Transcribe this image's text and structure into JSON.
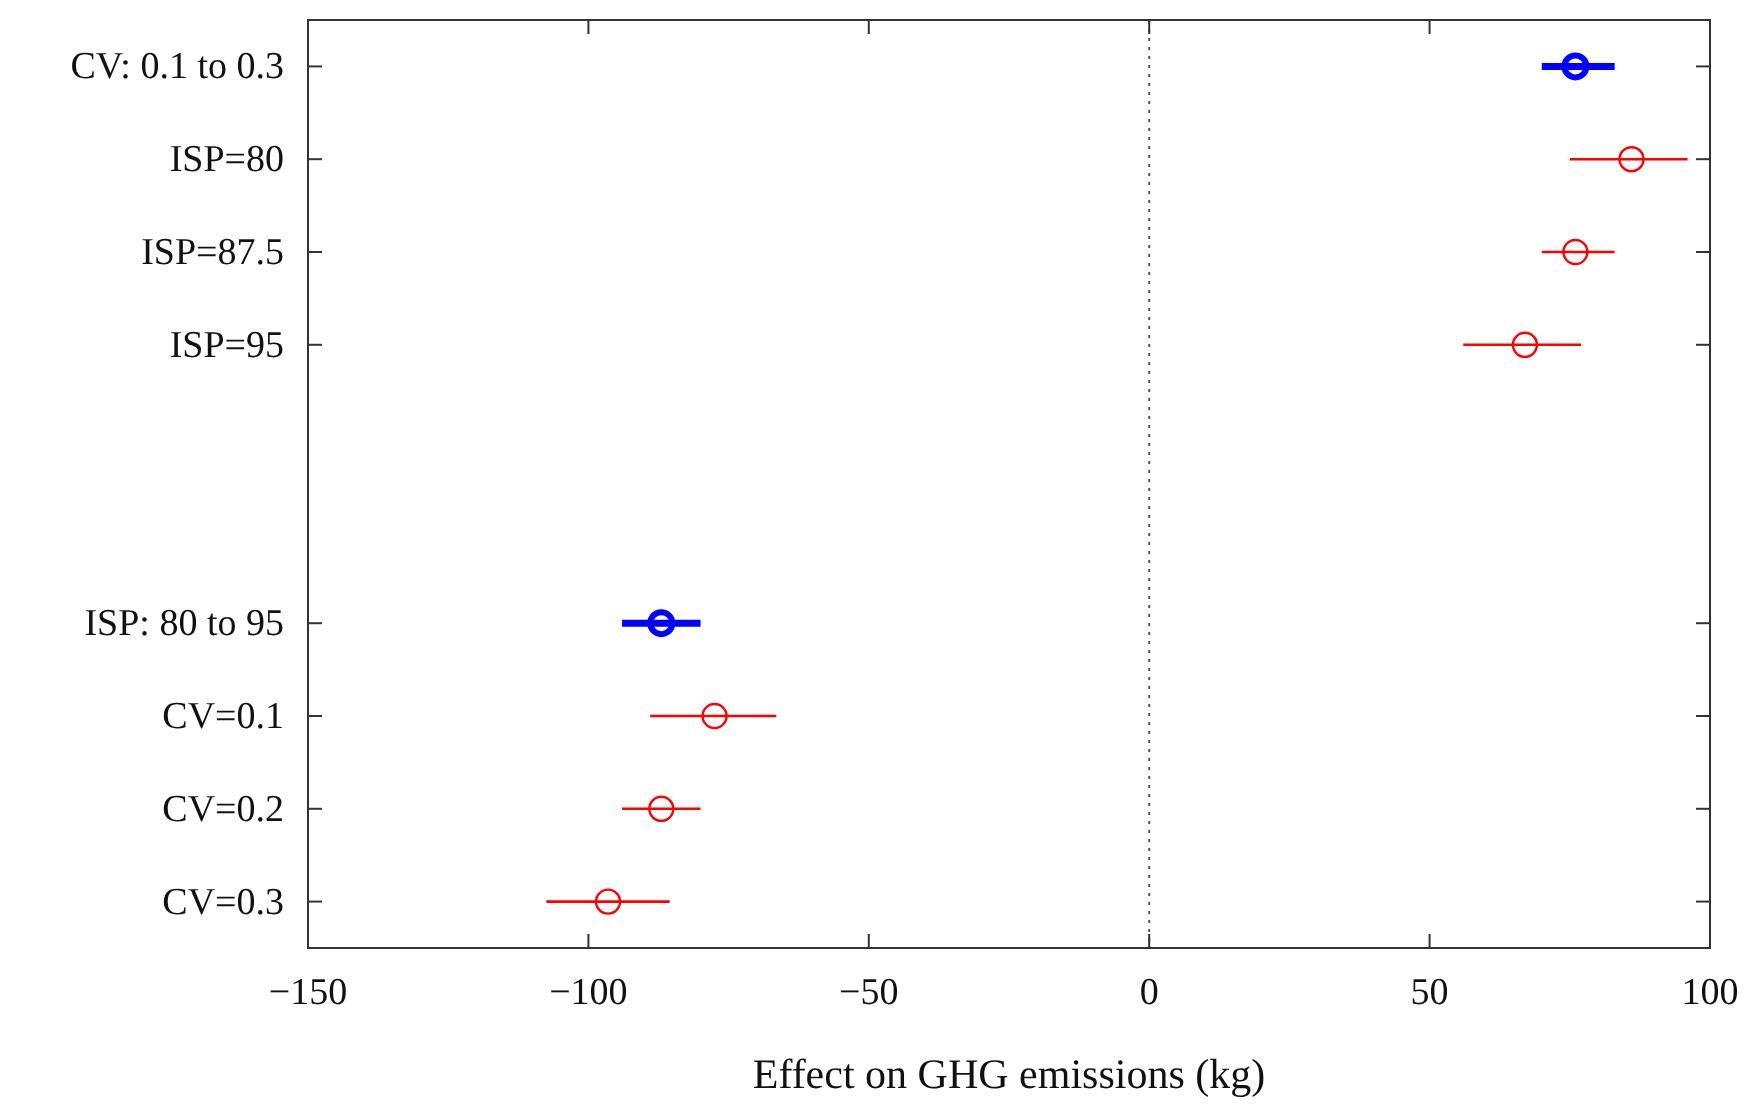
{
  "chart_data": {
    "type": "scatter",
    "orientation": "horizontal",
    "categories": [
      "CV: 0.1 to 0.3",
      "ISP=80",
      "ISP=87.5",
      "ISP=95",
      null,
      null,
      "ISP: 80 to 95",
      "CV=0.1",
      "CV=0.2",
      "CV=0.3"
    ],
    "series": [
      {
        "color": "#0000ff",
        "values": [
          76,
          null,
          null,
          null,
          null,
          null,
          -87,
          null,
          null,
          null
        ],
        "errors": [
          [
            70,
            83
          ],
          null,
          null,
          null,
          null,
          null,
          [
            -94,
            -80
          ],
          null,
          null,
          null
        ]
      },
      {
        "color": "#ff0000",
        "values": [
          null,
          86,
          76,
          67,
          null,
          null,
          null,
          -77.5,
          -87,
          -96.5
        ],
        "errors": [
          null,
          [
            75,
            96
          ],
          [
            70,
            83
          ],
          [
            56,
            77
          ],
          null,
          null,
          null,
          [
            -89,
            -66.5
          ],
          [
            -94,
            -80
          ],
          [
            -107.5,
            -85.5
          ]
        ]
      }
    ],
    "xlim": [
      -150,
      100
    ],
    "xticks": [
      {
        "value": -150,
        "label": "−150"
      },
      {
        "value": -100,
        "label": "−100"
      },
      {
        "value": -50,
        "label": "−50"
      },
      0,
      50,
      100
    ],
    "xlabel": "Effect on GHG emissions (kg)",
    "marker": "circle",
    "grid": false,
    "ref_lines": [
      {
        "axis": "x",
        "value": 0,
        "line_style": "dotted",
        "color": "#555555"
      }
    ]
  }
}
